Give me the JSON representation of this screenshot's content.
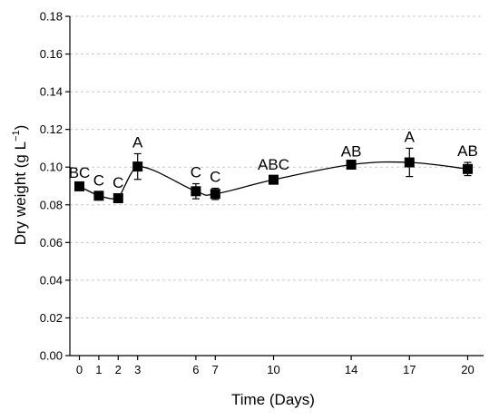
{
  "chart_data": {
    "type": "line",
    "xlabel": "Time (Days)",
    "ylabel_main": "Dry weight (g L",
    "ylabel_sup": "−1",
    "ylabel_close": ")",
    "ylim": [
      0,
      0.18
    ],
    "yticks": [
      0.0,
      0.02,
      0.04,
      0.06,
      0.08,
      0.1,
      0.12,
      0.14,
      0.16,
      0.18
    ],
    "ytick_labels": [
      "0.00",
      "0.02",
      "0.04",
      "0.06",
      "0.08",
      "0.10",
      "0.12",
      "0.14",
      "0.16",
      "0.18"
    ],
    "xlim": [
      -0.8,
      21.2
    ],
    "xticks": [
      0,
      1,
      2,
      3,
      6,
      7,
      10,
      14,
      17,
      20
    ],
    "xtick_labels": [
      "0",
      "1",
      "2",
      "3",
      "6",
      "7",
      "10",
      "14",
      "17",
      "20"
    ],
    "grid": "horizontal-dashed",
    "marker": "square",
    "series": [
      {
        "x": [
          0,
          1,
          2,
          3,
          6,
          7,
          10,
          14,
          17,
          20
        ],
        "y": [
          0.0898,
          0.0848,
          0.0835,
          0.1003,
          0.0872,
          0.0858,
          0.0933,
          0.1013,
          0.1025,
          0.099
        ],
        "error": [
          0.0012,
          0.002,
          0.0022,
          0.0068,
          0.004,
          0.003,
          0.002,
          0.001,
          0.0075,
          0.0035
        ],
        "labels": [
          "BC",
          "C",
          "C",
          "A",
          "C",
          "C",
          "ABC",
          "AB",
          "A",
          "AB"
        ]
      }
    ]
  }
}
